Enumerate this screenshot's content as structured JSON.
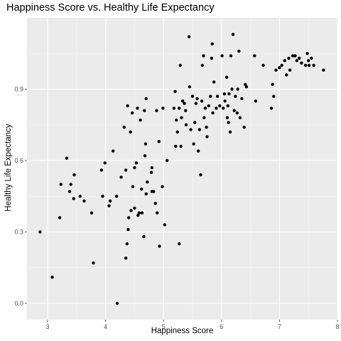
{
  "chart_data": {
    "type": "scatter",
    "title": "Happiness Score vs. Healthy Life Expectancy",
    "xlabel": "Happiness Score",
    "ylabel": "Healthy Life Expectancy",
    "xlim": [
      2.65,
      8.0
    ],
    "ylim": [
      -0.06,
      1.2
    ],
    "xticks": [
      3,
      4,
      5,
      6,
      7,
      8
    ],
    "xtick_labels": [
      "3",
      "4",
      "5",
      "6",
      "7",
      "8"
    ],
    "yticks": [
      0.0,
      0.3,
      0.6,
      0.9
    ],
    "ytick_labels": [
      "0.0",
      "0.3",
      "0.6",
      "0.9"
    ],
    "grid": true,
    "legend": "none",
    "colors": {
      "panel": "#ebebeb",
      "grid_major": "#ffffff",
      "grid_minor": "#f5f5f5",
      "point": "#000000",
      "tick": "#4d4d4d"
    },
    "points": [
      [
        2.87,
        0.3
      ],
      [
        3.08,
        0.11
      ],
      [
        3.21,
        0.36
      ],
      [
        3.23,
        0.5
      ],
      [
        3.33,
        0.61
      ],
      [
        3.38,
        0.47
      ],
      [
        3.4,
        0.5
      ],
      [
        3.45,
        0.44
      ],
      [
        3.46,
        0.54
      ],
      [
        3.56,
        0.45
      ],
      [
        3.63,
        0.43
      ],
      [
        3.76,
        0.38
      ],
      [
        3.79,
        0.17
      ],
      [
        3.93,
        0.56
      ],
      [
        3.95,
        0.45
      ],
      [
        3.99,
        0.59
      ],
      [
        4.06,
        0.41
      ],
      [
        4.08,
        0.43
      ],
      [
        4.13,
        0.64
      ],
      [
        4.19,
        0.45
      ],
      [
        4.2,
        0.0
      ],
      [
        4.27,
        0.53
      ],
      [
        4.32,
        0.74
      ],
      [
        4.35,
        0.56
      ],
      [
        4.35,
        0.19
      ],
      [
        4.37,
        0.25
      ],
      [
        4.38,
        0.83
      ],
      [
        4.39,
        0.31
      ],
      [
        4.4,
        0.36
      ],
      [
        4.43,
        0.72
      ],
      [
        4.44,
        0.39
      ],
      [
        4.46,
        0.8
      ],
      [
        4.47,
        0.49
      ],
      [
        4.5,
        0.57
      ],
      [
        4.5,
        0.4
      ],
      [
        4.53,
        0.59
      ],
      [
        4.55,
        0.82
      ],
      [
        4.56,
        0.37
      ],
      [
        4.58,
        0.38
      ],
      [
        4.6,
        0.77
      ],
      [
        4.62,
        0.48
      ],
      [
        4.63,
        0.38
      ],
      [
        4.66,
        0.28
      ],
      [
        4.67,
        0.81
      ],
      [
        4.68,
        0.62
      ],
      [
        4.69,
        0.67
      ],
      [
        4.7,
        0.86
      ],
      [
        4.7,
        0.46
      ],
      [
        4.72,
        0.51
      ],
      [
        4.79,
        0.55
      ],
      [
        4.8,
        0.57
      ],
      [
        4.8,
        0.47
      ],
      [
        4.83,
        0.47
      ],
      [
        4.86,
        0.42
      ],
      [
        4.88,
        0.81
      ],
      [
        4.89,
        0.38
      ],
      [
        4.92,
        0.68
      ],
      [
        4.93,
        0.24
      ],
      [
        4.98,
        0.49
      ],
      [
        4.99,
        0.82
      ],
      [
        5.02,
        0.33
      ],
      [
        5.06,
        0.6
      ],
      [
        5.18,
        0.82
      ],
      [
        5.2,
        0.89
      ],
      [
        5.21,
        0.66
      ],
      [
        5.22,
        0.77
      ],
      [
        5.24,
        0.72
      ],
      [
        5.27,
        0.82
      ],
      [
        5.27,
        0.25
      ],
      [
        5.29,
        1.0
      ],
      [
        5.3,
        0.66
      ],
      [
        5.31,
        0.78
      ],
      [
        5.33,
        0.85
      ],
      [
        5.36,
        0.84
      ],
      [
        5.38,
        0.81
      ],
      [
        5.39,
        0.75
      ],
      [
        5.44,
        1.12
      ],
      [
        5.45,
        0.91
      ],
      [
        5.47,
        0.73
      ],
      [
        5.5,
        0.87
      ],
      [
        5.52,
        0.67
      ],
      [
        5.54,
        0.76
      ],
      [
        5.56,
        0.84
      ],
      [
        5.58,
        0.86
      ],
      [
        5.6,
        0.64
      ],
      [
        5.62,
        0.73
      ],
      [
        5.64,
        0.54
      ],
      [
        5.66,
        0.85
      ],
      [
        5.67,
        1.0
      ],
      [
        5.69,
        1.04
      ],
      [
        5.7,
        0.78
      ],
      [
        5.72,
        0.82
      ],
      [
        5.74,
        0.74
      ],
      [
        5.75,
        0.7
      ],
      [
        5.78,
        0.83
      ],
      [
        5.81,
        0.87
      ],
      [
        5.83,
        1.03
      ],
      [
        5.84,
        1.09
      ],
      [
        5.85,
        0.8
      ],
      [
        5.87,
        0.93
      ],
      [
        5.91,
        0.82
      ],
      [
        5.93,
        0.87
      ],
      [
        5.97,
        0.83
      ],
      [
        6.01,
        1.04
      ],
      [
        6.03,
        0.82
      ],
      [
        6.05,
        0.88
      ],
      [
        6.06,
        0.85
      ],
      [
        6.09,
        0.95
      ],
      [
        6.1,
        0.78
      ],
      [
        6.11,
        0.83
      ],
      [
        6.12,
        0.76
      ],
      [
        6.13,
        0.88
      ],
      [
        6.15,
        0.72
      ],
      [
        6.16,
        1.04
      ],
      [
        6.18,
        0.9
      ],
      [
        6.2,
        1.13
      ],
      [
        6.22,
        0.81
      ],
      [
        6.24,
        0.87
      ],
      [
        6.27,
        0.8
      ],
      [
        6.28,
        0.9
      ],
      [
        6.3,
        1.06
      ],
      [
        6.32,
        0.78
      ],
      [
        6.35,
        0.86
      ],
      [
        6.39,
        0.74
      ],
      [
        6.41,
        0.92
      ],
      [
        6.43,
        0.91
      ],
      [
        6.57,
        1.04
      ],
      [
        6.59,
        0.85
      ],
      [
        6.72,
        1.0
      ],
      [
        6.86,
        0.82
      ],
      [
        6.88,
        0.92
      ],
      [
        6.9,
        0.87
      ],
      [
        6.94,
        0.98
      ],
      [
        7.0,
        0.99
      ],
      [
        7.04,
        1.0
      ],
      [
        7.09,
        1.02
      ],
      [
        7.12,
        0.96
      ],
      [
        7.16,
        1.03
      ],
      [
        7.18,
        0.98
      ],
      [
        7.23,
        1.04
      ],
      [
        7.27,
        1.04
      ],
      [
        7.3,
        1.02
      ],
      [
        7.34,
        1.03
      ],
      [
        7.38,
        1.01
      ],
      [
        7.45,
        1.0
      ],
      [
        7.48,
        1.05
      ],
      [
        7.5,
        1.02
      ],
      [
        7.51,
        1.0
      ],
      [
        7.55,
        1.03
      ],
      [
        7.59,
        1.0
      ],
      [
        7.76,
        0.98
      ]
    ]
  }
}
